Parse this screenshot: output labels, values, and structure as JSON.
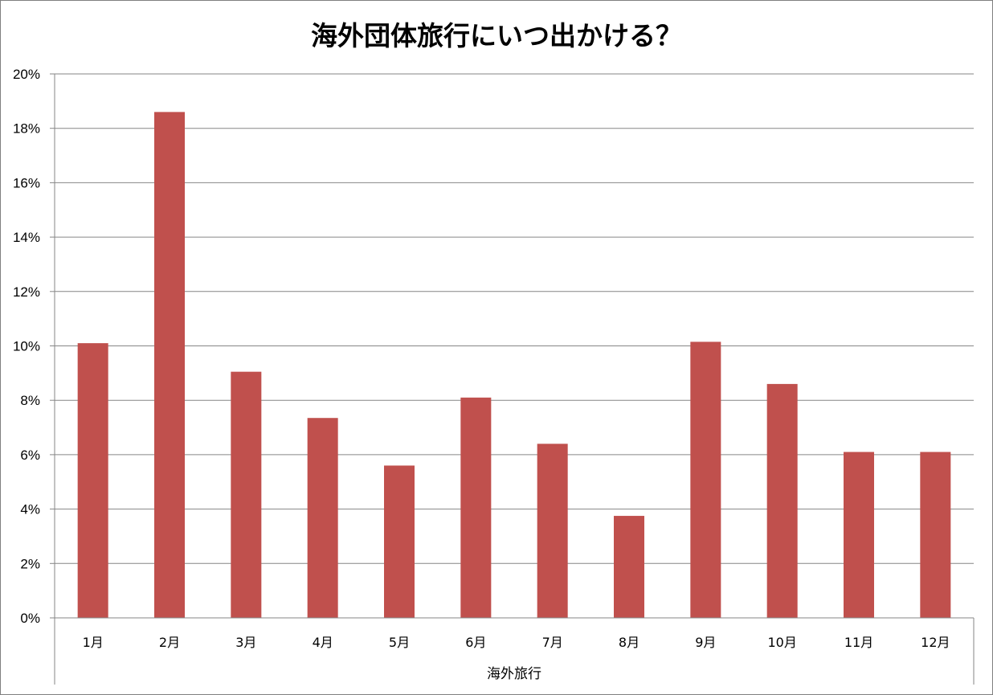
{
  "chart_data": {
    "type": "bar",
    "title": "海外団体旅行にいつ出かける？",
    "xlabel": "海外旅行",
    "ylabel": "",
    "categories": [
      "1月",
      "2月",
      "3月",
      "4月",
      "5月",
      "6月",
      "7月",
      "8月",
      "9月",
      "10月",
      "11月",
      "12月"
    ],
    "series": [
      {
        "values": [
          10.1,
          18.6,
          9.05,
          7.35,
          5.6,
          8.1,
          6.4,
          3.75,
          10.15,
          8.6,
          6.1,
          6.1
        ]
      }
    ],
    "ylim": [
      0,
      20
    ],
    "yticks": [
      "0%",
      "2%",
      "4%",
      "6%",
      "8%",
      "10%",
      "12%",
      "14%",
      "16%",
      "18%",
      "20%"
    ],
    "grid": true,
    "legend": "none",
    "colors": {
      "bar": "#C0504D",
      "grid": "#868686",
      "axis": "#868686"
    }
  }
}
